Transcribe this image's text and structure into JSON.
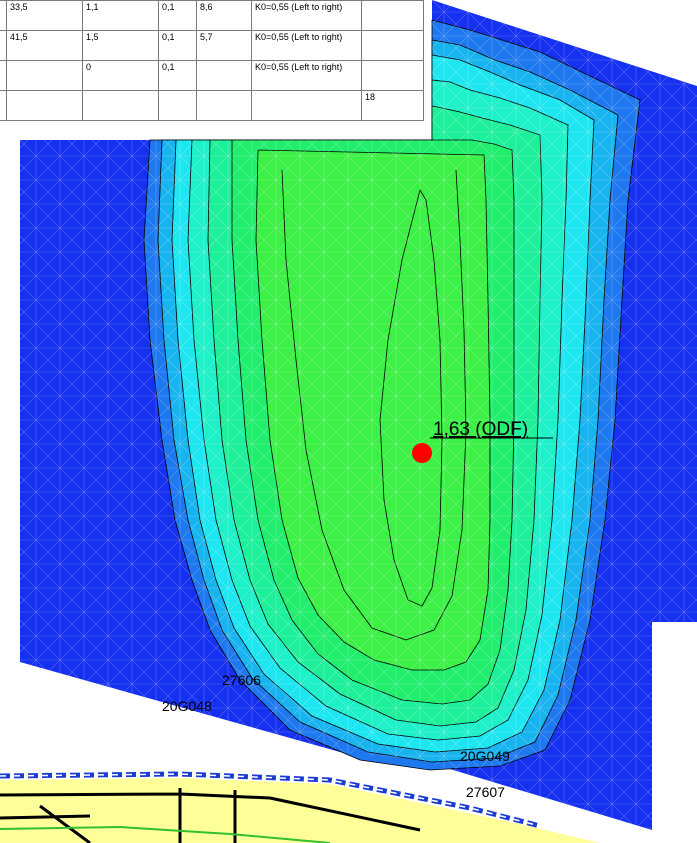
{
  "table": {
    "rows": [
      [
        "",
        "33,5",
        "1,1",
        "0,1",
        "8,6",
        "K0=0,55 (Left to right)",
        ""
      ],
      [
        "",
        "41,5",
        "1,5",
        "0,1",
        "5,7",
        "K0=0,55 (Left to right)",
        ""
      ],
      [
        "",
        "",
        "0",
        "0,1",
        "",
        "K0=0,55 (Left to right)",
        ""
      ],
      [
        "",
        "",
        "",
        "",
        "",
        "",
        "18"
      ]
    ]
  },
  "marker": {
    "label": "1,63 (ODF)",
    "color": "#ff0000"
  },
  "node_labels": [
    "27606",
    "20G048",
    "20G049",
    "27607"
  ],
  "colors": {
    "outer": "#1630f0",
    "band1": "#1e78f0",
    "band2": "#18b4f0",
    "band3": "#1ee6f0",
    "band4": "#1ef0c8",
    "band5": "#1ef09a",
    "band6": "#22ee6e",
    "core": "#3cf046",
    "soil_yellow": "#ffff9a",
    "road_green": "#30c030"
  }
}
